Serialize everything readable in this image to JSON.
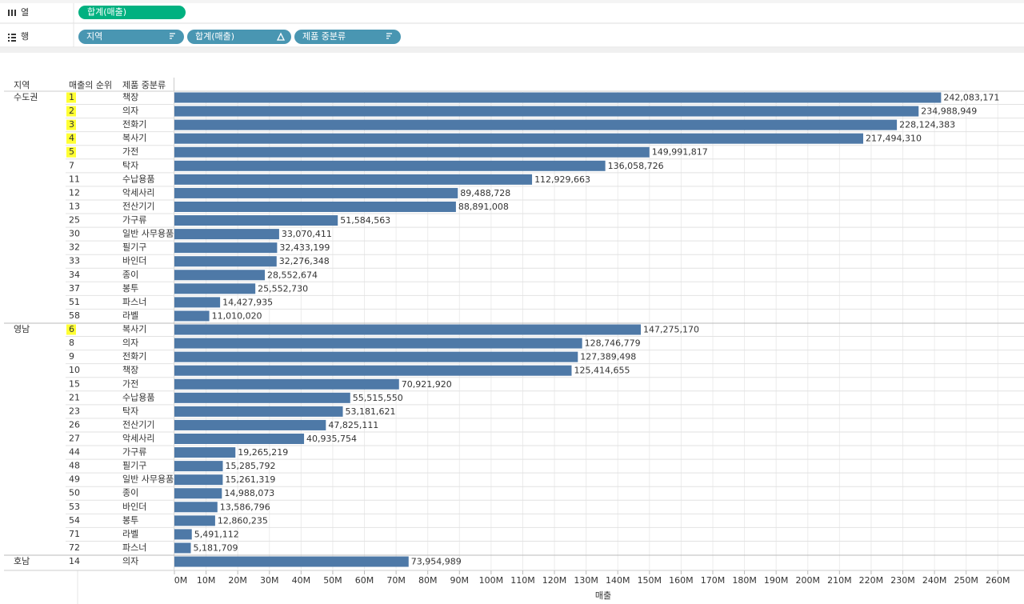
{
  "shelves": {
    "columns": {
      "label": "열",
      "pills": [
        "합계(매출)"
      ]
    },
    "rows": {
      "label": "행",
      "pills": [
        "지역",
        "합계(매출)",
        "제품 중분류"
      ]
    }
  },
  "chart_data": {
    "type": "bar",
    "orientation": "horizontal",
    "color": "#4e79a7",
    "highlight_color": "#ffff33",
    "headers": [
      "지역",
      "매출의 순위",
      "제품 중분류"
    ],
    "xlabel": "매출",
    "xlim": [
      0,
      267000000
    ],
    "xticks": [
      {
        "value": 0,
        "label": "0M"
      },
      {
        "value": 10000000,
        "label": "10M"
      },
      {
        "value": 20000000,
        "label": "20M"
      },
      {
        "value": 30000000,
        "label": "30M"
      },
      {
        "value": 40000000,
        "label": "40M"
      },
      {
        "value": 50000000,
        "label": "50M"
      },
      {
        "value": 60000000,
        "label": "60M"
      },
      {
        "value": 70000000,
        "label": "70M"
      },
      {
        "value": 80000000,
        "label": "80M"
      },
      {
        "value": 90000000,
        "label": "90M"
      },
      {
        "value": 100000000,
        "label": "100M"
      },
      {
        "value": 110000000,
        "label": "110M"
      },
      {
        "value": 120000000,
        "label": "120M"
      },
      {
        "value": 130000000,
        "label": "130M"
      },
      {
        "value": 140000000,
        "label": "140M"
      },
      {
        "value": 150000000,
        "label": "150M"
      },
      {
        "value": 160000000,
        "label": "160M"
      },
      {
        "value": 170000000,
        "label": "170M"
      },
      {
        "value": 180000000,
        "label": "180M"
      },
      {
        "value": 190000000,
        "label": "190M"
      },
      {
        "value": 200000000,
        "label": "200M"
      },
      {
        "value": 210000000,
        "label": "210M"
      },
      {
        "value": 220000000,
        "label": "220M"
      },
      {
        "value": 230000000,
        "label": "230M"
      },
      {
        "value": 240000000,
        "label": "240M"
      },
      {
        "value": 250000000,
        "label": "250M"
      },
      {
        "value": 260000000,
        "label": "260M"
      }
    ],
    "grid": true,
    "groups": [
      {
        "name": "수도권",
        "ranks": [
          1,
          2,
          3,
          4,
          5,
          7,
          11,
          12,
          13,
          25,
          30,
          32,
          33,
          34,
          37,
          51,
          58
        ],
        "highlight": [
          true,
          true,
          true,
          true,
          true,
          false,
          false,
          false,
          false,
          false,
          false,
          false,
          false,
          false,
          false,
          false,
          false
        ],
        "categories": [
          "책장",
          "의자",
          "전화기",
          "복사기",
          "가전",
          "탁자",
          "수납용품",
          "악세사리",
          "전산기기",
          "가구류",
          "일반 사무용품",
          "필기구",
          "바인더",
          "종이",
          "봉투",
          "파스너",
          "라벨"
        ],
        "values": [
          242083171,
          234988949,
          228124383,
          217494310,
          149991817,
          136058726,
          112929663,
          89488728,
          88891008,
          51584563,
          33070411,
          32433199,
          32276348,
          28552674,
          25552730,
          14427935,
          11010020
        ],
        "value_labels": [
          "242,083,171",
          "234,988,949",
          "228,124,383",
          "217,494,310",
          "149,991,817",
          "136,058,726",
          "112,929,663",
          "89,488,728",
          "88,891,008",
          "51,584,563",
          "33,070,411",
          "32,433,199",
          "32,276,348",
          "28,552,674",
          "25,552,730",
          "14,427,935",
          "11,010,020"
        ]
      },
      {
        "name": "영남",
        "ranks": [
          6,
          8,
          9,
          10,
          15,
          21,
          23,
          26,
          27,
          44,
          48,
          49,
          50,
          53,
          54,
          71,
          72
        ],
        "highlight": [
          true,
          false,
          false,
          false,
          false,
          false,
          false,
          false,
          false,
          false,
          false,
          false,
          false,
          false,
          false,
          false,
          false
        ],
        "categories": [
          "복사기",
          "의자",
          "전화기",
          "책장",
          "가전",
          "수납용품",
          "탁자",
          "전산기기",
          "악세사리",
          "가구류",
          "필기구",
          "일반 사무용품",
          "종이",
          "바인더",
          "봉투",
          "라벨",
          "파스너"
        ],
        "values": [
          147275170,
          128746779,
          127389498,
          125414655,
          70921920,
          55515550,
          53181621,
          47825111,
          40935754,
          19265219,
          15285792,
          15261319,
          14988073,
          13586796,
          12860235,
          5491112,
          5181709
        ],
        "value_labels": [
          "147,275,170",
          "128,746,779",
          "127,389,498",
          "125,414,655",
          "70,921,920",
          "55,515,550",
          "53,181,621",
          "47,825,111",
          "40,935,754",
          "19,265,219",
          "15,285,792",
          "15,261,319",
          "14,988,073",
          "13,586,796",
          "12,860,235",
          "5,491,112",
          "5,181,709"
        ]
      },
      {
        "name": "호남",
        "ranks": [
          14
        ],
        "highlight": [
          false
        ],
        "categories": [
          "의자"
        ],
        "values": [
          73954989
        ],
        "value_labels": [
          "73,954,989"
        ]
      }
    ]
  }
}
